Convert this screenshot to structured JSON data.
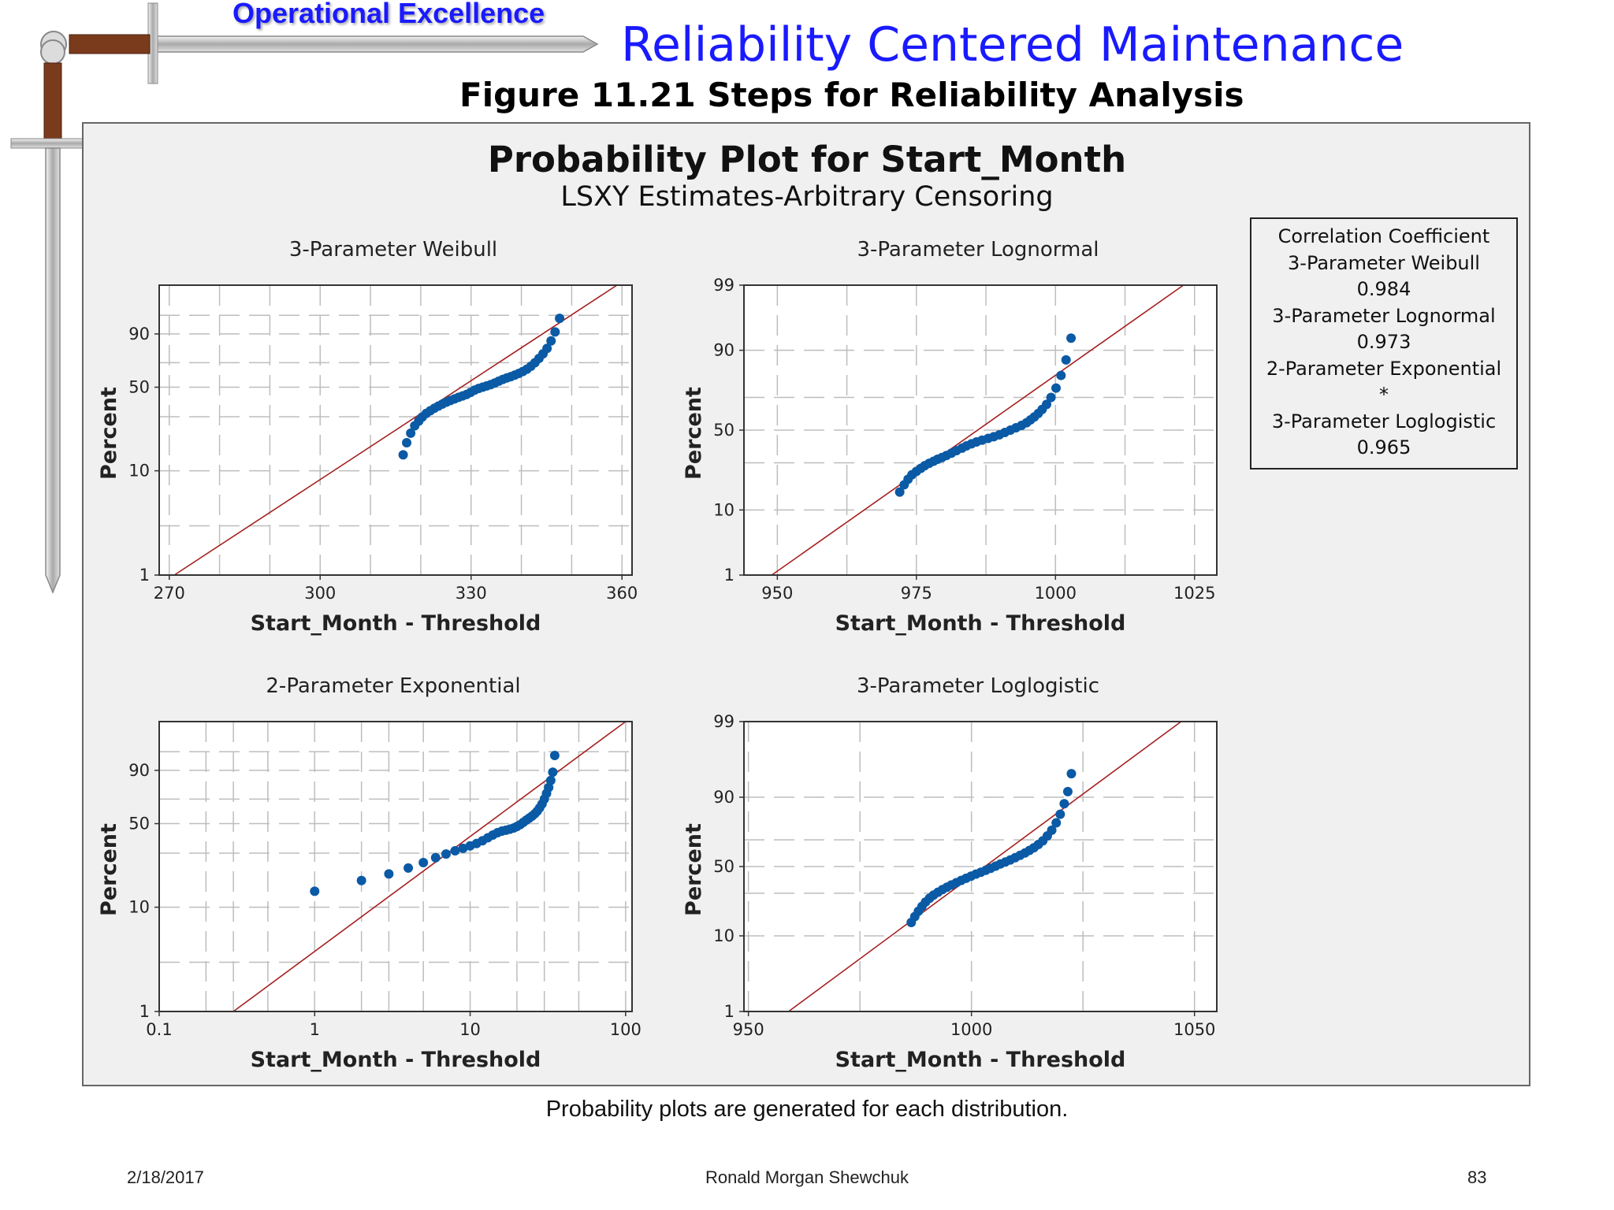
{
  "header": {
    "brand": "Operational Excellence",
    "title": "Reliability Centered Maintenance",
    "figure_title": "Figure 11.21  Steps for Reliability Analysis"
  },
  "decor": {
    "logo_icon": "sword-icon"
  },
  "plot": {
    "title": "Probability Plot for Start_Month",
    "subtitle": "LSXY Estimates-Arbitrary Censoring"
  },
  "legend": {
    "lines": [
      "Correlation Coefficient",
      "3-Parameter Weibull",
      "0.984",
      "3-Parameter Lognormal",
      "0.973",
      "2-Parameter Exponential",
      "*",
      "3-Parameter Loglogistic",
      "0.965"
    ]
  },
  "caption": "Probability plots are generated for each distribution.",
  "footer": {
    "date": "2/18/2017",
    "author": "Ronald Morgan Shewchuk",
    "page": "83"
  },
  "colors": {
    "points": "#0a5aa5",
    "fit_line": "#a52020",
    "grid": "#bdbdbd",
    "panel_bg": "#f0f0f0",
    "title_blue": "#1a1aff"
  },
  "chart_data": [
    {
      "type": "scatter",
      "title": "3-Parameter Weibull",
      "xlabel": "Start_Month - Threshold",
      "ylabel": "Percent",
      "xscale": "linear",
      "yscale": "weibull",
      "xlim": [
        268,
        362
      ],
      "ylim": [
        1,
        99.9
      ],
      "xticks": [
        270,
        300,
        330,
        360
      ],
      "xtick_labels": [
        "270",
        "300",
        "330",
        "360"
      ],
      "yticks": [
        1,
        10,
        50,
        90
      ],
      "ytick_labels": [
        "1",
        "10",
        "50",
        "90"
      ],
      "minor_xgrid": [
        280,
        290,
        310,
        320,
        340,
        350
      ],
      "minor_ygrid": [
        3,
        30,
        70,
        97
      ],
      "fit_line": {
        "x": [
          271,
          359
        ],
        "y": [
          1,
          99.9
        ]
      },
      "points": {
        "x": [
          316.5,
          317.2,
          318.0,
          318.8,
          319.6,
          320.3,
          321.1,
          321.9,
          322.7,
          323.5,
          324.3,
          325.1,
          325.9,
          326.7,
          327.5,
          328.3,
          329.1,
          329.9,
          330.7,
          331.5,
          332.3,
          333.1,
          333.9,
          334.7,
          335.5,
          336.3,
          337.1,
          337.9,
          338.7,
          339.5,
          340.3,
          341.1,
          341.9,
          342.7,
          343.5,
          344.3,
          345.1,
          345.9,
          346.7,
          347.6
        ],
        "y": [
          14.0,
          18.0,
          21.8,
          25.2,
          27.6,
          29.8,
          31.9,
          33.5,
          35.0,
          36.4,
          37.8,
          39.0,
          40.2,
          41.3,
          42.4,
          43.4,
          44.5,
          46.0,
          47.7,
          49.0,
          50.0,
          51.0,
          52.0,
          53.3,
          54.8,
          56.2,
          57.4,
          58.5,
          59.8,
          61.2,
          62.8,
          64.7,
          67.1,
          70.0,
          73.4,
          77.0,
          81.0,
          86.0,
          91.0,
          96.2
        ]
      },
      "note": "Fit line and points only"
    },
    {
      "type": "scatter",
      "title": "3-Parameter Lognormal",
      "xlabel": "Start_Month - Threshold",
      "ylabel": "Percent",
      "xscale": "linear",
      "yscale": "normal",
      "xlim": [
        944,
        1029
      ],
      "ylim": [
        1,
        99
      ],
      "xticks": [
        950,
        975,
        1000,
        1025
      ],
      "xtick_labels": [
        "950",
        "975",
        "1000",
        "1025"
      ],
      "yticks": [
        1,
        10,
        50,
        90,
        99
      ],
      "ytick_labels": [
        "1",
        "10",
        "50",
        "90",
        "99"
      ],
      "minor_xgrid": [
        962.5,
        987.5,
        1012.5
      ],
      "minor_ygrid": [
        30,
        70
      ],
      "fit_line": {
        "x": [
          949,
          1023
        ],
        "y": [
          1,
          99
        ]
      },
      "points": {
        "x": [
          972.0,
          972.8,
          973.5,
          974.2,
          975.0,
          975.8,
          976.5,
          977.3,
          978.1,
          978.8,
          979.6,
          980.4,
          981.3,
          982.2,
          983.2,
          984.0,
          984.9,
          985.8,
          986.8,
          987.9,
          988.9,
          989.9,
          990.9,
          991.9,
          992.9,
          993.9,
          994.8,
          995.5,
          996.2,
          996.9,
          997.6,
          998.4,
          999.2,
          1000.1,
          1001.0,
          1001.9,
          1002.8
        ],
        "y": [
          16.0,
          19.0,
          21.5,
          23.7,
          25.4,
          27.0,
          28.4,
          29.7,
          30.9,
          32.0,
          33.0,
          34.2,
          35.6,
          37.1,
          38.6,
          40.0,
          41.3,
          42.5,
          43.6,
          44.7,
          45.8,
          47.0,
          48.5,
          50.0,
          51.5,
          53.0,
          54.7,
          56.5,
          58.4,
          60.5,
          63.0,
          66.0,
          70.0,
          75.0,
          81.0,
          87.0,
          93.0
        ]
      }
    },
    {
      "type": "scatter",
      "title": "2-Parameter Exponential",
      "xlabel": "Start_Month - Threshold",
      "ylabel": "Percent",
      "xscale": "log",
      "yscale": "weibull",
      "xlim": [
        0.1,
        110
      ],
      "ylim": [
        1,
        99.9
      ],
      "xticks": [
        0.1,
        1,
        10,
        100
      ],
      "xtick_labels": [
        "0.1",
        "1",
        "10",
        "100"
      ],
      "yticks": [
        1,
        10,
        50,
        90
      ],
      "ytick_labels": [
        "1",
        "10",
        "50",
        "90"
      ],
      "minor_xgrid": [
        0.2,
        0.3,
        0.5,
        2,
        3,
        5,
        20,
        30,
        50
      ],
      "minor_ygrid": [
        3,
        30,
        70,
        97
      ],
      "fit_line": {
        "x": [
          0.3,
          100
        ],
        "y": [
          1,
          99.9
        ]
      },
      "points": {
        "x": [
          1.0,
          2.0,
          3.0,
          4.0,
          5.0,
          6.0,
          7.0,
          8.0,
          9.0,
          10.0,
          11.0,
          12.0,
          13.0,
          14.0,
          15.0,
          16.0,
          17.0,
          18.0,
          19.0,
          20.0,
          21.0,
          22.0,
          23.0,
          24.0,
          25.0,
          26.0,
          27.0,
          28.0,
          29.0,
          30.0,
          31.0,
          32.0,
          33.0,
          34.0,
          35.0
        ],
        "y": [
          14.0,
          17.5,
          20.0,
          22.5,
          25.0,
          27.5,
          29.5,
          31.3,
          32.8,
          34.3,
          35.8,
          37.6,
          39.6,
          41.5,
          43.2,
          44.3,
          45.0,
          45.7,
          46.6,
          47.8,
          49.2,
          51.0,
          52.8,
          54.4,
          56.0,
          57.8,
          60.0,
          62.8,
          66.0,
          70.0,
          74.5,
          79.0,
          84.0,
          89.0,
          96.0
        ]
      }
    },
    {
      "type": "scatter",
      "title": "3-Parameter Loglogistic",
      "xlabel": "Start_Month - Threshold",
      "ylabel": "Percent",
      "xscale": "linear",
      "yscale": "logistic",
      "xlim": [
        949,
        1055
      ],
      "ylim": [
        1,
        99
      ],
      "xticks": [
        950,
        1000,
        1050
      ],
      "xtick_labels": [
        "950",
        "1000",
        "1050"
      ],
      "yticks": [
        1,
        10,
        50,
        90,
        99
      ],
      "ytick_labels": [
        "1",
        "10",
        "50",
        "90",
        "99"
      ],
      "minor_xgrid": [
        975,
        1025
      ],
      "minor_ygrid": [
        30,
        70
      ],
      "fit_line": {
        "x": [
          959,
          1047
        ],
        "y": [
          1,
          99
        ]
      },
      "points": {
        "x": [
          986.5,
          987.3,
          988.1,
          988.9,
          989.7,
          990.6,
          991.5,
          992.5,
          993.5,
          994.5,
          995.5,
          996.6,
          997.7,
          998.8,
          999.9,
          1001.0,
          1002.1,
          1003.2,
          1004.3,
          1005.4,
          1006.5,
          1007.6,
          1008.7,
          1009.8,
          1010.9,
          1012.0,
          1013.0,
          1014.0,
          1015.0,
          1016.0,
          1017.0,
          1018.0,
          1019.0,
          1019.9,
          1020.8,
          1021.6,
          1022.4
        ],
        "y": [
          14.5,
          17.0,
          19.5,
          22.0,
          24.5,
          26.8,
          28.8,
          30.7,
          32.5,
          34.2,
          35.8,
          37.5,
          39.2,
          40.8,
          42.4,
          44.0,
          45.5,
          47.0,
          48.6,
          50.3,
          52.0,
          53.6,
          55.2,
          57.0,
          58.8,
          60.6,
          62.5,
          64.5,
          66.8,
          69.3,
          72.5,
          76.0,
          80.0,
          84.0,
          88.0,
          91.5,
          95.0
        ]
      }
    }
  ]
}
